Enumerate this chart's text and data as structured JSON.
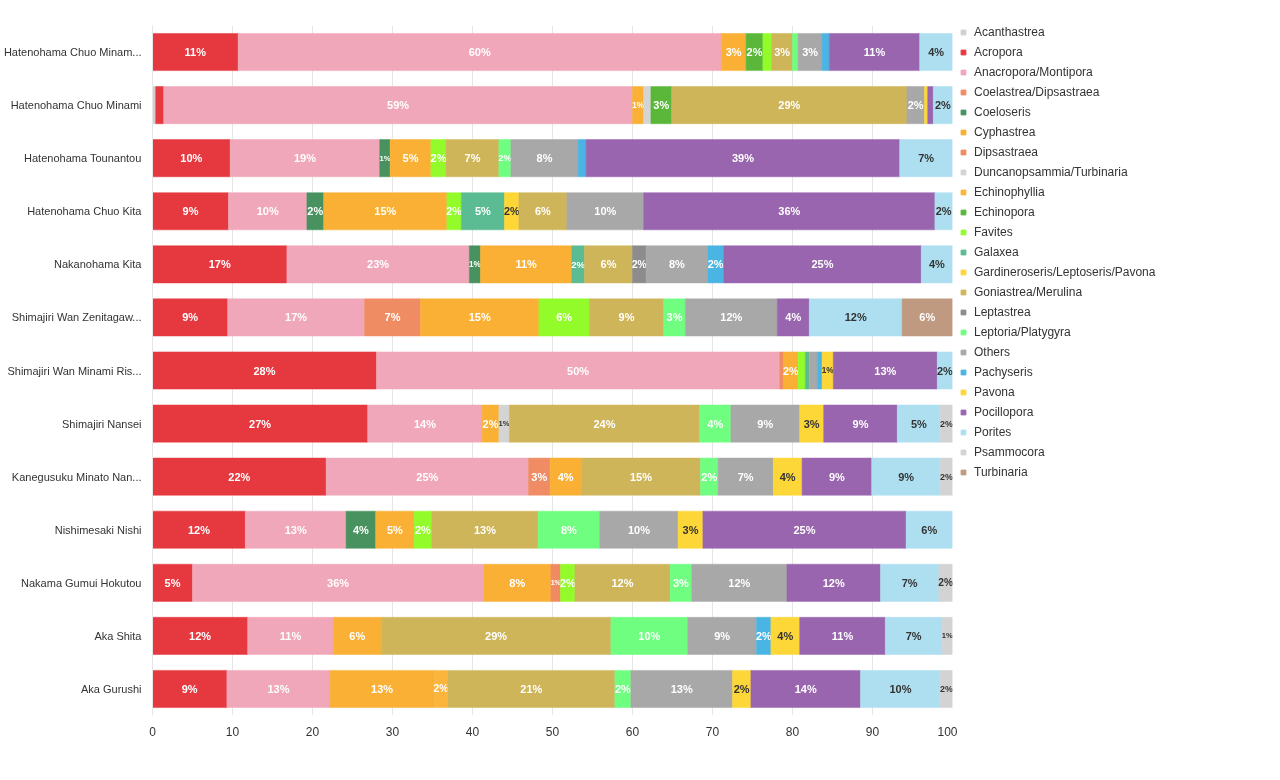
{
  "chart_data": {
    "type": "bar",
    "orientation": "horizontal",
    "stacked": true,
    "categories": [
      "Hatenohama Chuo Minam...",
      "Hatenohama Chuo Minami",
      "Hatenohama Tounantou",
      "Hatenohama Chuo Kita",
      "Nakanohama Kita",
      "Shimajiri Wan Zenitagaw...",
      "Shimajiri Wan Minami Ris...",
      "Shimajiri Nansei",
      "Kanegusuku Minato Nan...",
      "Nishimesaki Nishi",
      "Nakama Gumui Hokutou",
      "Aka Shita",
      "Aka Gurushi"
    ],
    "xlim": [
      0,
      100
    ],
    "xticks": [
      0,
      10,
      20,
      30,
      40,
      50,
      60,
      70,
      80,
      90,
      100
    ],
    "grid": "x",
    "legend": "right",
    "series": [
      {
        "name": "Acanthastrea",
        "color": "#d0d0d0",
        "values": [
          null,
          0.4,
          null,
          null,
          null,
          null,
          null,
          null,
          null,
          null,
          null,
          null,
          null
        ],
        "value_labels": [
          null,
          null,
          null,
          null,
          null,
          null,
          null,
          null,
          null,
          null,
          null,
          null,
          null
        ]
      },
      {
        "name": "Acropora",
        "color": "#e5383f",
        "values": [
          10.7,
          1.0,
          9.7,
          9.5,
          16.8,
          9.4,
          28.0,
          26.9,
          21.7,
          11.6,
          5.0,
          11.9,
          9.3
        ],
        "value_labels": [
          "11%",
          null,
          "10%",
          "9%",
          "17%",
          "9%",
          "28%",
          "27%",
          "22%",
          "12%",
          "5%",
          "12%",
          "9%"
        ]
      },
      {
        "name": "Anacropora/Montipora",
        "color": "#f0a7b9",
        "values": [
          60.4,
          58.6,
          18.7,
          9.8,
          22.8,
          17.1,
          50.4,
          14.3,
          25.3,
          12.6,
          36.4,
          10.7,
          12.9
        ],
        "value_labels": [
          "60%",
          "59%",
          "19%",
          "10%",
          "23%",
          "17%",
          "50%",
          "14%",
          "25%",
          "13%",
          "36%",
          "11%",
          "13%"
        ]
      },
      {
        "name": "Coelastrea/Dipsastraea",
        "color": "#ef8c64",
        "values": [
          null,
          null,
          null,
          null,
          null,
          7.0,
          0.5,
          null,
          2.7,
          null,
          null,
          null,
          null
        ],
        "value_labels": [
          null,
          null,
          null,
          null,
          null,
          "7%",
          null,
          null,
          "3%",
          null,
          null,
          null,
          null
        ]
      },
      {
        "name": "Coeloseris",
        "color": "#47925f",
        "values": [
          null,
          null,
          1.3,
          2.1,
          1.4,
          null,
          null,
          null,
          null,
          3.7,
          null,
          null,
          null
        ],
        "value_labels": [
          null,
          null,
          "1%",
          "2%",
          "1%",
          null,
          null,
          null,
          null,
          "4%",
          null,
          null,
          null
        ]
      },
      {
        "name": "Cyphastrea",
        "color": "#f9b035",
        "values": [
          3.1,
          1.4,
          5.1,
          15.4,
          11.4,
          14.8,
          1.8,
          2.1,
          3.9,
          4.8,
          8.4,
          6.0,
          13.0
        ],
        "value_labels": [
          "3%",
          "1%",
          "5%",
          "15%",
          "11%",
          "15%",
          "2%",
          "2%",
          "4%",
          "5%",
          "8%",
          "6%",
          "13%"
        ]
      },
      {
        "name": "Dipsastraea",
        "color": "#f08a60",
        "values": [
          null,
          null,
          null,
          null,
          null,
          null,
          null,
          null,
          null,
          null,
          1.2,
          null,
          null
        ],
        "value_labels": [
          null,
          null,
          null,
          null,
          null,
          null,
          null,
          null,
          null,
          null,
          "1%",
          null,
          null
        ]
      },
      {
        "name": "Duncanopsammia/Turbinaria",
        "color": "#d4d4d4",
        "values": [
          null,
          0.9,
          null,
          null,
          null,
          null,
          null,
          1.3,
          null,
          null,
          null,
          null,
          null
        ],
        "value_labels": [
          null,
          null,
          null,
          null,
          null,
          null,
          null,
          "1%",
          null,
          null,
          null,
          null,
          null
        ]
      },
      {
        "name": "Echinophyllia",
        "color": "#fbb53c",
        "values": [
          null,
          null,
          null,
          null,
          null,
          null,
          null,
          null,
          null,
          null,
          null,
          null,
          1.7
        ],
        "value_labels": [
          null,
          null,
          null,
          null,
          null,
          null,
          null,
          null,
          null,
          null,
          null,
          null,
          "2%"
        ]
      },
      {
        "name": "Echinopora",
        "color": "#5bb73a",
        "values": [
          2.1,
          2.6,
          null,
          null,
          null,
          null,
          null,
          null,
          null,
          null,
          null,
          null,
          null
        ],
        "value_labels": [
          "2%",
          "3%",
          null,
          null,
          null,
          null,
          null,
          null,
          null,
          null,
          null,
          null,
          null
        ]
      },
      {
        "name": "Favites",
        "color": "#93fb2a",
        "values": [
          1.1,
          null,
          1.9,
          1.8,
          null,
          6.3,
          0.9,
          null,
          null,
          2.2,
          1.8,
          null,
          null
        ],
        "value_labels": [
          null,
          null,
          "2%",
          "2%",
          null,
          "6%",
          null,
          null,
          null,
          "2%",
          "2%",
          null,
          null
        ]
      },
      {
        "name": "Galaxea",
        "color": "#5bbb92",
        "values": [
          null,
          null,
          null,
          5.4,
          1.6,
          null,
          0.5,
          null,
          null,
          null,
          null,
          null,
          null
        ],
        "value_labels": [
          null,
          null,
          null,
          "5%",
          "2%",
          null,
          null,
          null,
          null,
          null,
          null,
          null,
          null
        ]
      },
      {
        "name": "Gardineroseris/Leptoseris/Pavona",
        "color": "#fed636",
        "values": [
          null,
          null,
          null,
          1.8,
          null,
          null,
          null,
          null,
          null,
          null,
          null,
          null,
          null
        ],
        "value_labels": [
          null,
          null,
          null,
          "2%",
          null,
          null,
          null,
          null,
          null,
          null,
          null,
          null,
          null
        ]
      },
      {
        "name": "Goniastrea/Merulina",
        "color": "#cfb55a",
        "values": [
          2.6,
          29.4,
          6.6,
          6.0,
          6.0,
          9.3,
          null,
          23.8,
          14.9,
          13.3,
          11.9,
          28.7,
          20.9
        ],
        "value_labels": [
          "3%",
          "29%",
          "7%",
          "6%",
          "6%",
          "9%",
          null,
          "24%",
          "15%",
          "13%",
          "12%",
          "29%",
          "21%"
        ]
      },
      {
        "name": "Leptastrea",
        "color": "#8c8c8c",
        "values": [
          null,
          null,
          null,
          null,
          1.7,
          null,
          null,
          null,
          null,
          null,
          null,
          null,
          null
        ],
        "value_labels": [
          null,
          null,
          null,
          null,
          "2%",
          null,
          null,
          null,
          null,
          null,
          null,
          null,
          null
        ]
      },
      {
        "name": "Leptoria/Platygyra",
        "color": "#6ffe80",
        "values": [
          0.7,
          null,
          1.5,
          null,
          null,
          2.7,
          null,
          3.9,
          2.2,
          7.7,
          2.7,
          9.6,
          2.0
        ],
        "value_labels": [
          null,
          null,
          "2%",
          null,
          null,
          "3%",
          null,
          "4%",
          "2%",
          "8%",
          "3%",
          "10%",
          "2%"
        ]
      },
      {
        "name": "Others",
        "color": "#a8a8a8",
        "values": [
          3.0,
          2.2,
          8.4,
          9.6,
          7.7,
          11.5,
          1.0,
          8.6,
          6.9,
          9.8,
          11.9,
          8.6,
          12.7
        ],
        "value_labels": [
          "3%",
          "2%",
          "8%",
          "10%",
          "8%",
          "12%",
          null,
          "9%",
          "7%",
          "10%",
          "12%",
          "9%",
          "13%"
        ]
      },
      {
        "name": "Pachyseris",
        "color": "#4ab4e3",
        "values": [
          0.9,
          null,
          1.0,
          null,
          2.0,
          null,
          0.6,
          null,
          null,
          null,
          null,
          1.8,
          null
        ],
        "value_labels": [
          null,
          null,
          null,
          null,
          "2%",
          null,
          null,
          null,
          null,
          null,
          null,
          "2%",
          null
        ]
      },
      {
        "name": "Pavona",
        "color": "#fdd638",
        "values": [
          null,
          0.4,
          null,
          null,
          null,
          null,
          1.4,
          3.0,
          3.6,
          3.1,
          null,
          3.6,
          2.3
        ],
        "value_labels": [
          null,
          null,
          null,
          null,
          null,
          null,
          "1%",
          "3%",
          "4%",
          "3%",
          null,
          "4%",
          "2%"
        ]
      },
      {
        "name": "Pocillopora",
        "color": "#9965ae",
        "values": [
          11.3,
          0.7,
          39.2,
          36.4,
          24.7,
          4.0,
          13.0,
          9.2,
          8.7,
          25.4,
          11.7,
          10.7,
          13.7
        ],
        "value_labels": [
          "11%",
          null,
          "39%",
          "36%",
          "25%",
          "4%",
          "13%",
          "9%",
          "9%",
          "25%",
          "12%",
          "11%",
          "14%"
        ]
      },
      {
        "name": "Porites",
        "color": "#aedff0",
        "values": [
          4.1,
          2.4,
          6.6,
          2.2,
          3.9,
          11.6,
          1.9,
          5.4,
          8.6,
          5.8,
          7.3,
          7.1,
          10.0
        ],
        "value_labels": [
          "4%",
          "2%",
          "7%",
          "2%",
          "4%",
          "12%",
          "2%",
          "5%",
          "9%",
          "6%",
          "7%",
          "7%",
          "10%"
        ]
      },
      {
        "name": "Psammocora",
        "color": "#d3d3d3",
        "values": [
          null,
          null,
          null,
          null,
          null,
          null,
          null,
          1.5,
          1.5,
          null,
          1.7,
          1.3,
          1.5
        ],
        "value_labels": [
          null,
          null,
          null,
          null,
          null,
          null,
          null,
          "2%",
          "2%",
          null,
          "2%",
          "1%",
          "2%"
        ]
      },
      {
        "name": "Turbinaria",
        "color": "#bf9a80",
        "values": [
          null,
          null,
          null,
          null,
          null,
          6.3,
          null,
          null,
          null,
          null,
          null,
          null,
          null
        ],
        "value_labels": [
          null,
          null,
          null,
          null,
          null,
          "6%",
          null,
          null,
          null,
          null,
          null,
          null,
          null
        ]
      }
    ]
  }
}
